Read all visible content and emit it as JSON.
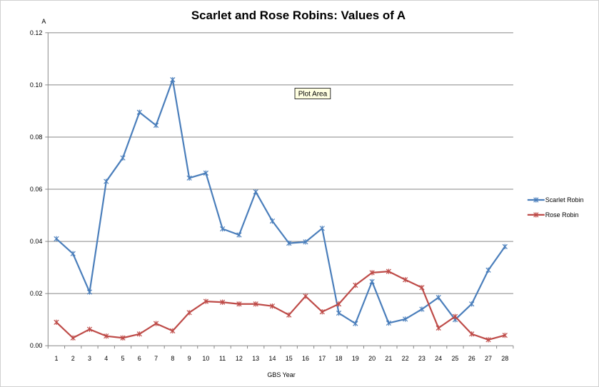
{
  "chart_data": {
    "type": "line",
    "title": "Scarlet and Rose Robins: Values of A",
    "xlabel": "GBS Year",
    "ylabel": "A",
    "ylim": [
      0,
      0.12
    ],
    "yticks": [
      "0.00",
      "0.02",
      "0.04",
      "0.06",
      "0.08",
      "0.10",
      "0.12"
    ],
    "grid": true,
    "legend": "right",
    "categories": [
      "1",
      "2",
      "3",
      "4",
      "5",
      "6",
      "7",
      "8",
      "9",
      "10",
      "11",
      "12",
      "13",
      "14",
      "15",
      "16",
      "17",
      "18",
      "19",
      "20",
      "21",
      "22",
      "23",
      "24",
      "25",
      "26",
      "27",
      "28"
    ],
    "series": [
      {
        "name": "Scarlet Robin",
        "color": "#4a7ebb",
        "values": [
          0.041,
          0.0353,
          0.0206,
          0.063,
          0.072,
          0.0895,
          0.0845,
          0.102,
          0.0643,
          0.0662,
          0.0448,
          0.0425,
          0.059,
          0.0478,
          0.0393,
          0.0398,
          0.045,
          0.0125,
          0.0085,
          0.0246,
          0.0087,
          0.0102,
          0.014,
          0.0185,
          0.01,
          0.016,
          0.029,
          0.038
        ]
      },
      {
        "name": "Rose Robin",
        "color": "#be4b48",
        "values": [
          0.009,
          0.003,
          0.0063,
          0.0037,
          0.003,
          0.0045,
          0.0085,
          0.0057,
          0.0127,
          0.017,
          0.0167,
          0.016,
          0.016,
          0.0152,
          0.0118,
          0.019,
          0.013,
          0.016,
          0.0232,
          0.028,
          0.0285,
          0.0253,
          0.0223,
          0.0068,
          0.0112,
          0.0045,
          0.0023,
          0.004
        ]
      }
    ],
    "annotation": "Plot Area"
  }
}
